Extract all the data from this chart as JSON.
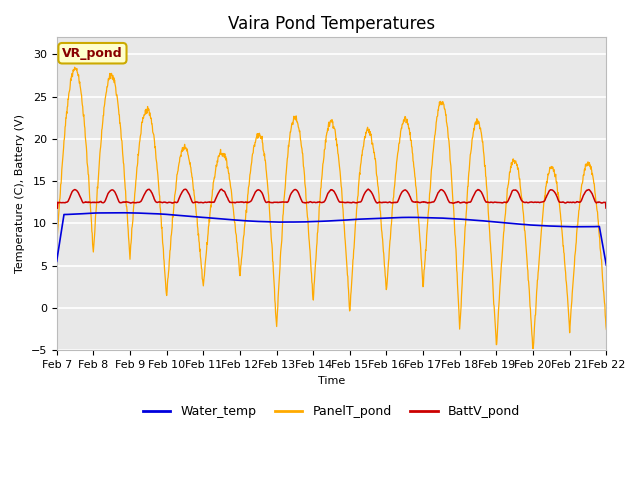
{
  "title": "Vaira Pond Temperatures",
  "xlabel": "Time",
  "ylabel": "Temperature (C), Battery (V)",
  "annotation": "VR_pond",
  "ylim": [
    -5,
    32
  ],
  "yticks": [
    -5,
    0,
    5,
    10,
    15,
    20,
    25,
    30
  ],
  "x_labels": [
    "Feb 7",
    "Feb 8",
    "Feb 9",
    "Feb 10",
    "Feb 11",
    "Feb 12",
    "Feb 13",
    "Feb 14",
    "Feb 15",
    "Feb 16",
    "Feb 17",
    "Feb 18",
    "Feb 19",
    "Feb 20",
    "Feb 21",
    "Feb 22"
  ],
  "water_color": "#0000dd",
  "panel_color": "#ffaa00",
  "batt_color": "#cc0000",
  "plot_bg_color": "#e8e8e8",
  "fig_bg_color": "#ffffff",
  "legend_labels": [
    "Water_temp",
    "PanelT_pond",
    "BattV_pond"
  ],
  "title_fontsize": 12,
  "axis_label_fontsize": 8,
  "tick_fontsize": 8,
  "annotation_facecolor": "#ffffcc",
  "annotation_edgecolor": "#ccaa00",
  "annotation_textcolor": "#880000"
}
